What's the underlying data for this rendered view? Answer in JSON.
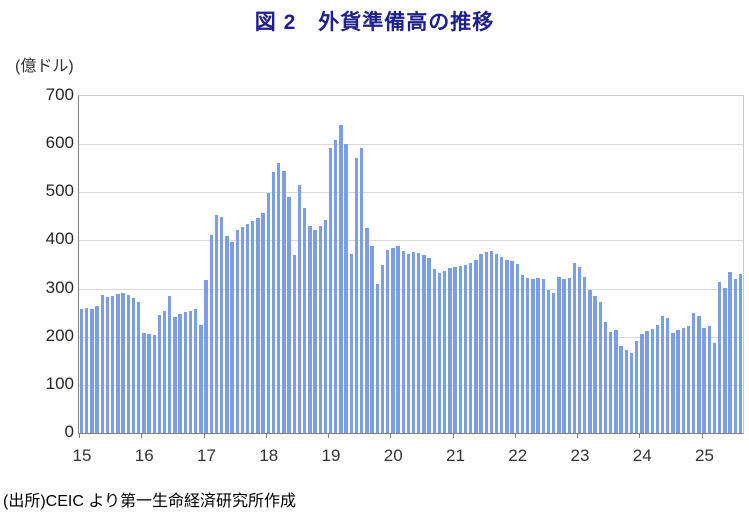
{
  "title": "図 2　外貨準備高の推移",
  "unit_label": "(億ドル)",
  "source_note": "(出所)CEIC より第一生命経済研究所作成",
  "colors": {
    "title": "#20208C",
    "bar": "#7C9EE2",
    "gridline": "#D9D9D9",
    "axis": "#7F7F7F",
    "tick_text": "#333333"
  },
  "chart_data": {
    "type": "bar",
    "title": "図 2　外貨準備高の推移",
    "xlabel": "",
    "ylabel": "(億ドル)",
    "ylim": [
      0,
      700
    ],
    "ytick_interval": 100,
    "yticks": [
      0,
      100,
      200,
      300,
      400,
      500,
      600,
      700
    ],
    "x_tick_labels": [
      "15",
      "16",
      "17",
      "18",
      "19",
      "20",
      "21",
      "22",
      "23",
      "24",
      "25"
    ],
    "x_unit": "month",
    "x_start": "2015-01",
    "x_end": "2025-08",
    "grid": "horizontal",
    "legend": "none",
    "series": [
      {
        "name": "外貨準備高",
        "values": [
          258,
          260,
          258,
          263,
          286,
          282,
          285,
          288,
          290,
          286,
          280,
          273,
          207,
          205,
          204,
          246,
          253,
          284,
          240,
          247,
          251,
          254,
          257,
          225,
          318,
          412,
          452,
          448,
          410,
          396,
          421,
          428,
          434,
          441,
          447,
          458,
          498,
          543,
          561,
          545,
          491,
          370,
          516,
          468,
          431,
          421,
          429,
          443,
          593,
          609,
          639,
          600,
          371,
          572,
          592,
          426,
          388,
          310,
          350,
          381,
          385,
          388,
          378,
          372,
          376,
          374,
          369,
          364,
          340,
          333,
          337,
          342,
          344,
          346,
          350,
          353,
          360,
          371,
          376,
          379,
          371,
          365,
          360,
          358,
          351,
          329,
          322,
          320,
          322,
          320,
          296,
          291,
          324,
          320,
          322,
          353,
          344,
          324,
          296,
          284,
          272,
          231,
          210,
          213,
          181,
          172,
          167,
          191,
          206,
          212,
          217,
          224,
          243,
          239,
          207,
          213,
          219,
          223,
          250,
          243,
          219,
          222,
          186,
          313,
          302,
          334,
          320,
          331
        ]
      }
    ]
  }
}
